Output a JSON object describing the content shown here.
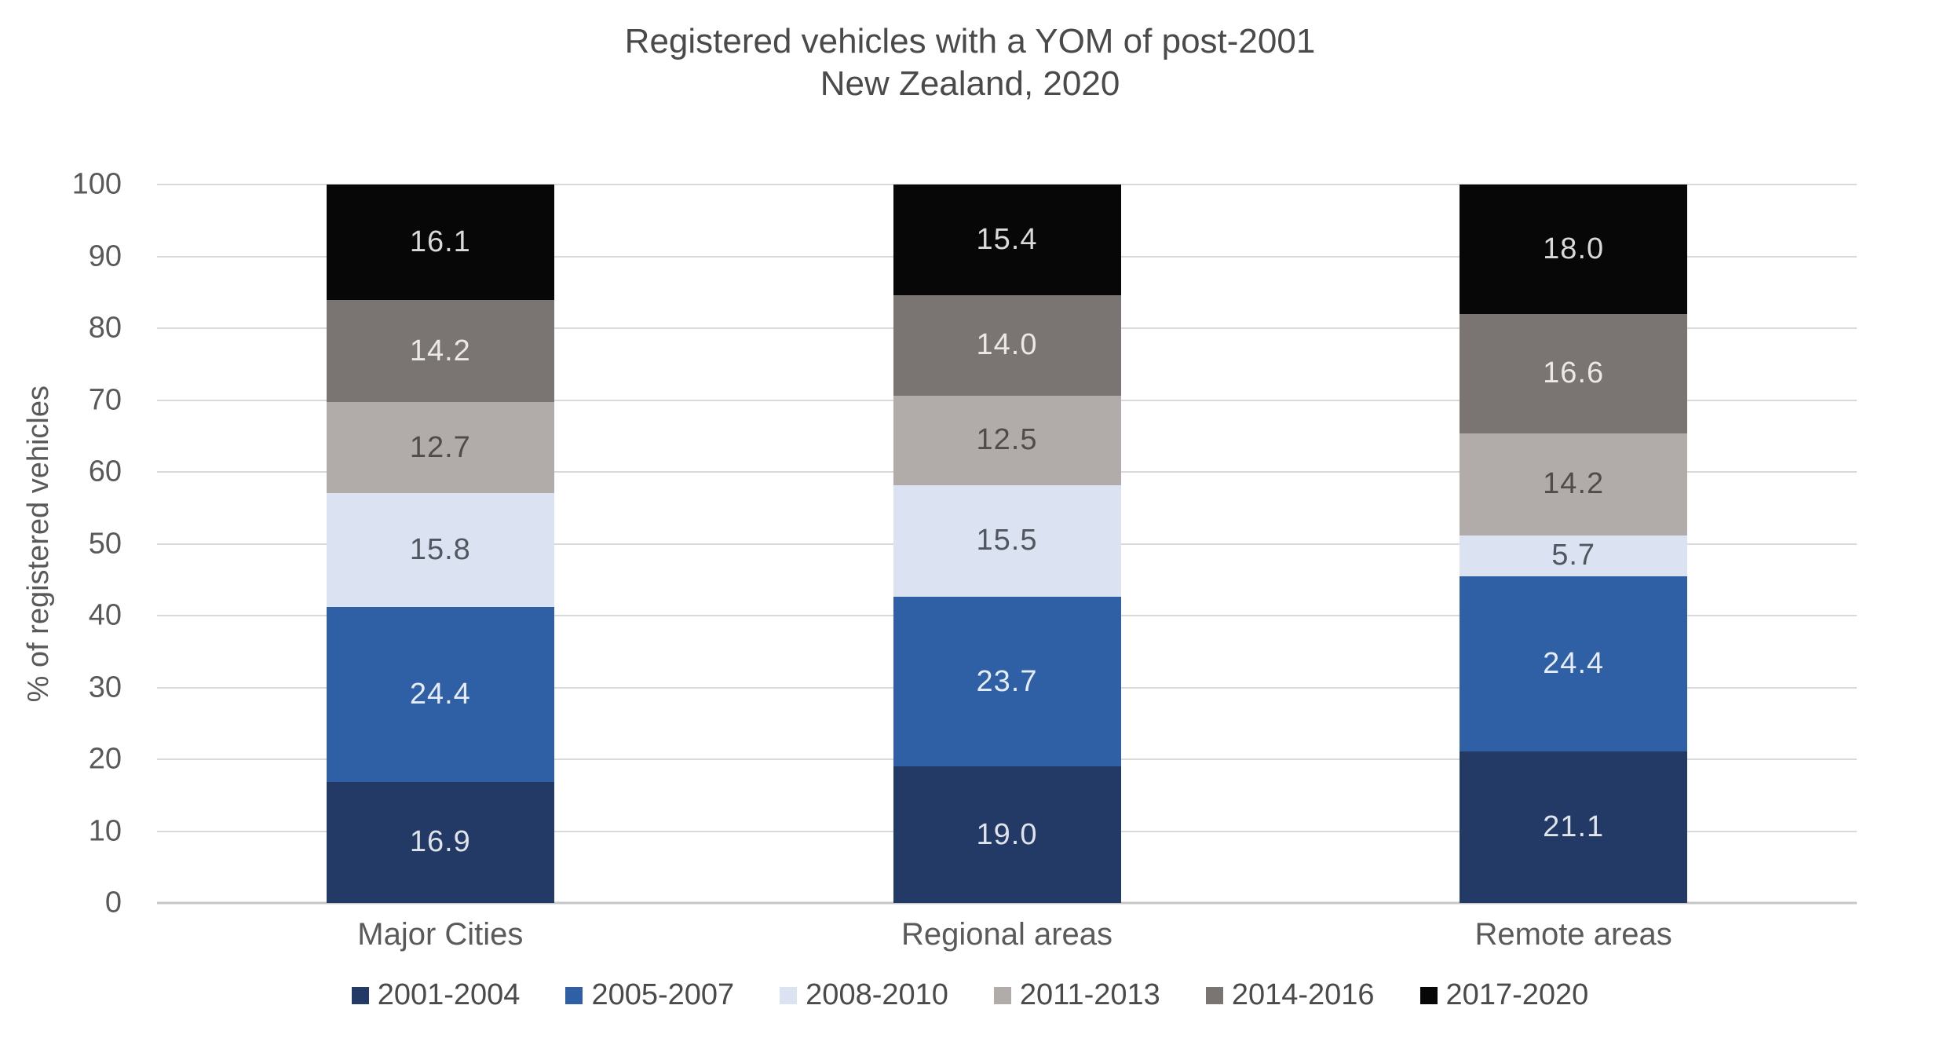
{
  "title": {
    "line1": "Registered vehicles with a YOM of post-2001",
    "line2": "New Zealand, 2020"
  },
  "chart_data": {
    "type": "bar",
    "variant": "stacked-column",
    "title": "Registered vehicles with a YOM of post-2001 — New Zealand, 2020",
    "categories": [
      "Major Cities",
      "Regional areas",
      "Remote areas"
    ],
    "series": [
      {
        "name": "2001-2004",
        "color": "#233a66",
        "label_color": "#dfe3ea",
        "values": [
          16.9,
          19.0,
          21.1
        ]
      },
      {
        "name": "2005-2007",
        "color": "#2f5fa4",
        "label_color": "#e6ecf6",
        "values": [
          24.4,
          23.7,
          24.4
        ]
      },
      {
        "name": "2008-2010",
        "color": "#dbe3f2",
        "label_color": "#51565f",
        "values": [
          15.8,
          15.5,
          5.7
        ]
      },
      {
        "name": "2011-2013",
        "color": "#b1acaa",
        "label_color": "#504c4a",
        "values": [
          12.7,
          12.5,
          14.2
        ]
      },
      {
        "name": "2014-2016",
        "color": "#7a7573",
        "label_color": "#ebe9e8",
        "values": [
          14.2,
          14.0,
          16.6
        ]
      },
      {
        "name": "2017-2020",
        "color": "#070707",
        "label_color": "#d9d9d9",
        "values": [
          16.1,
          15.4,
          18.0
        ]
      }
    ],
    "ylabel": "% of registered vehicles",
    "ylim": [
      0,
      100
    ],
    "yticks": [
      0,
      10,
      20,
      30,
      40,
      50,
      60,
      70,
      80,
      90,
      100
    ],
    "grid": true,
    "legend_position": "bottom"
  },
  "colors": {
    "gridline": "#d9d9d9",
    "baseline": "#c6c6c6",
    "axis_text": "#595959",
    "title_text": "#4a4a4a",
    "legend_text": "#4a4a4a",
    "background": "#ffffff"
  }
}
